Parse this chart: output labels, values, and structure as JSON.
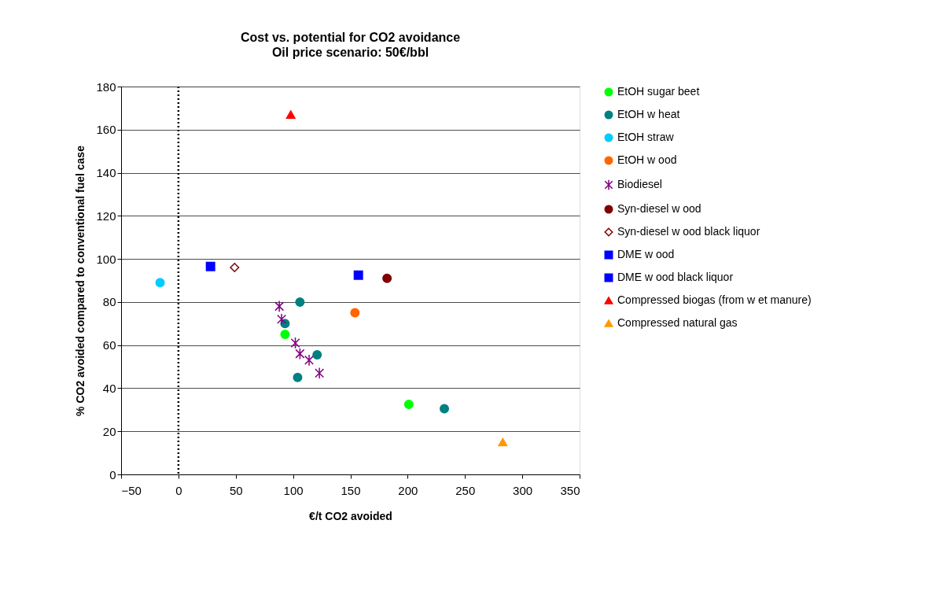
{
  "chart_data": {
    "type": "scatter",
    "title": "Cost vs. potential for CO2 avoidance",
    "subtitle": "Oil price scenario: 50€/bbl",
    "xlabel": "€/t CO2 avoided",
    "ylabel": "% CO2 avoided compared to conventional fuel case",
    "xlim": [
      -50,
      350
    ],
    "xticks": [
      -50,
      0,
      50,
      100,
      150,
      200,
      250,
      300,
      350
    ],
    "ylim": [
      0,
      180
    ],
    "yticks": [
      0,
      20,
      40,
      60,
      80,
      100,
      120,
      140,
      160,
      180
    ],
    "grid": "y",
    "legend": "right",
    "ref_lines": [
      {
        "axis": "x",
        "value": 0,
        "color": "#000000",
        "line_style": "dotted"
      }
    ],
    "series": [
      {
        "name": "EtOH sugar beet",
        "color": "#00ff00",
        "marker": "circle",
        "x": [
          93,
          201
        ],
        "values": [
          65,
          32.5
        ]
      },
      {
        "name": "EtOH w heat",
        "color": "#008080",
        "marker": "circle",
        "x": [
          106,
          93,
          121,
          104,
          232
        ],
        "values": [
          80,
          70,
          55.5,
          45,
          30.5
        ]
      },
      {
        "name": "EtOH straw",
        "color": "#00ccff",
        "marker": "circle",
        "x": [
          -16
        ],
        "values": [
          89
        ]
      },
      {
        "name": "EtOH w ood",
        "color": "#ff6600",
        "marker": "circle",
        "x": [
          154
        ],
        "values": [
          75
        ]
      },
      {
        "name": "Biodiesel",
        "color": "#800080",
        "marker": "cross",
        "x": [
          88,
          90,
          102,
          106,
          114,
          123
        ],
        "values": [
          78,
          72,
          61,
          56,
          53,
          47
        ]
      },
      {
        "name": "Syn-diesel w ood",
        "color": "#800000",
        "marker": "circle",
        "x": [
          182
        ],
        "values": [
          91
        ]
      },
      {
        "name": "Syn-diesel w ood black liquor",
        "color": "#800000",
        "marker": "diamond",
        "x": [
          49
        ],
        "values": [
          96
        ]
      },
      {
        "name": "DME w ood",
        "color": "#0000ff",
        "marker": "square",
        "x": [
          157
        ],
        "values": [
          92.5
        ]
      },
      {
        "name": "DME w ood black liquor",
        "color": "#0000ff",
        "marker": "square",
        "x": [
          28
        ],
        "values": [
          96.5
        ]
      },
      {
        "name": "Compressed biogas (from w et manure)",
        "color": "#ff0000",
        "marker": "triangle",
        "x": [
          98
        ],
        "values": [
          167
        ]
      },
      {
        "name": "Compressed natural gas",
        "color": "#ff9900",
        "marker": "triangle",
        "x": [
          283
        ],
        "values": [
          15
        ]
      }
    ]
  }
}
